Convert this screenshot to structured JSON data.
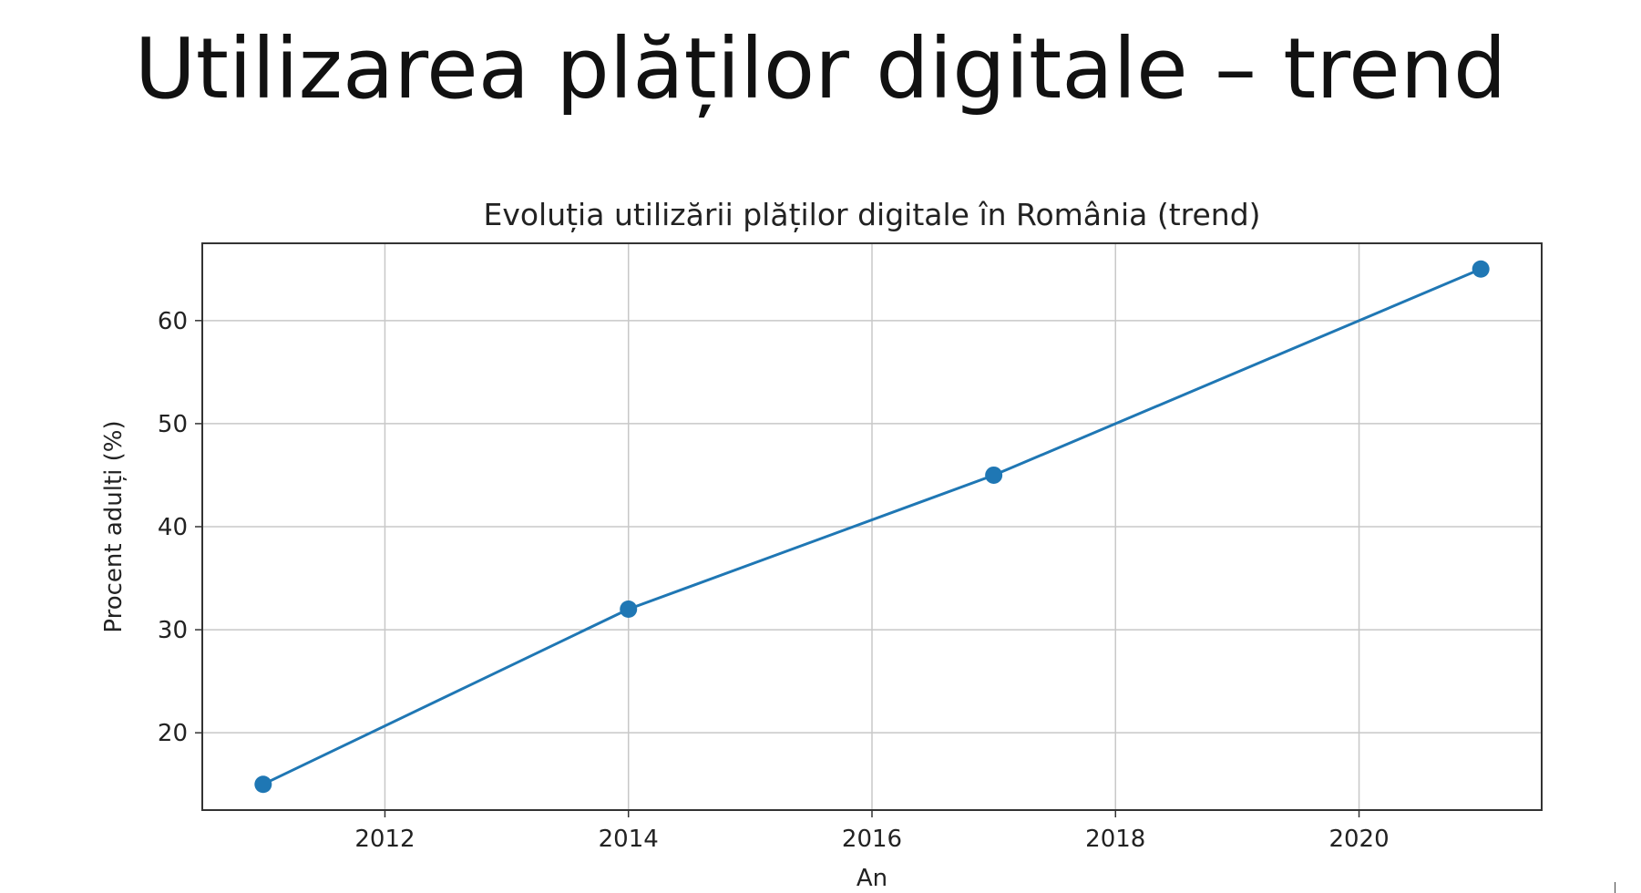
{
  "slide": {
    "title": "Utilizarea plăților digitale – trend"
  },
  "chart_data": {
    "type": "line",
    "title": "Evoluția utilizării plăților digitale în România (trend)",
    "xlabel": "An",
    "ylabel": "Procent adulți (%)",
    "x": [
      2011,
      2014,
      2017,
      2021
    ],
    "series": [
      {
        "values": [
          15,
          32,
          45,
          65
        ]
      }
    ],
    "xlim": [
      2010.5,
      2021.5
    ],
    "ylim": [
      12.5,
      67.5
    ],
    "xticks": [
      2012,
      2014,
      2016,
      2018,
      2020
    ],
    "yticks": [
      20,
      30,
      40,
      50,
      60
    ],
    "grid": true,
    "legend": "none",
    "colors": {
      "line": "#1f77b4",
      "grid": "#c8c8c8",
      "frame": "#333333"
    }
  }
}
